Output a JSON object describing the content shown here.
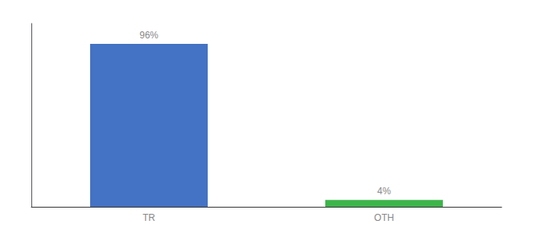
{
  "chart_data": {
    "type": "bar",
    "categories": [
      "TR",
      "OTH"
    ],
    "values": [
      96,
      4
    ],
    "value_labels": [
      "96%",
      "4%"
    ],
    "colors": [
      "#4472c4",
      "#3cb54a"
    ],
    "ylim": [
      0,
      108
    ],
    "grid": false,
    "data_labels": true,
    "tick_labels": "x"
  }
}
